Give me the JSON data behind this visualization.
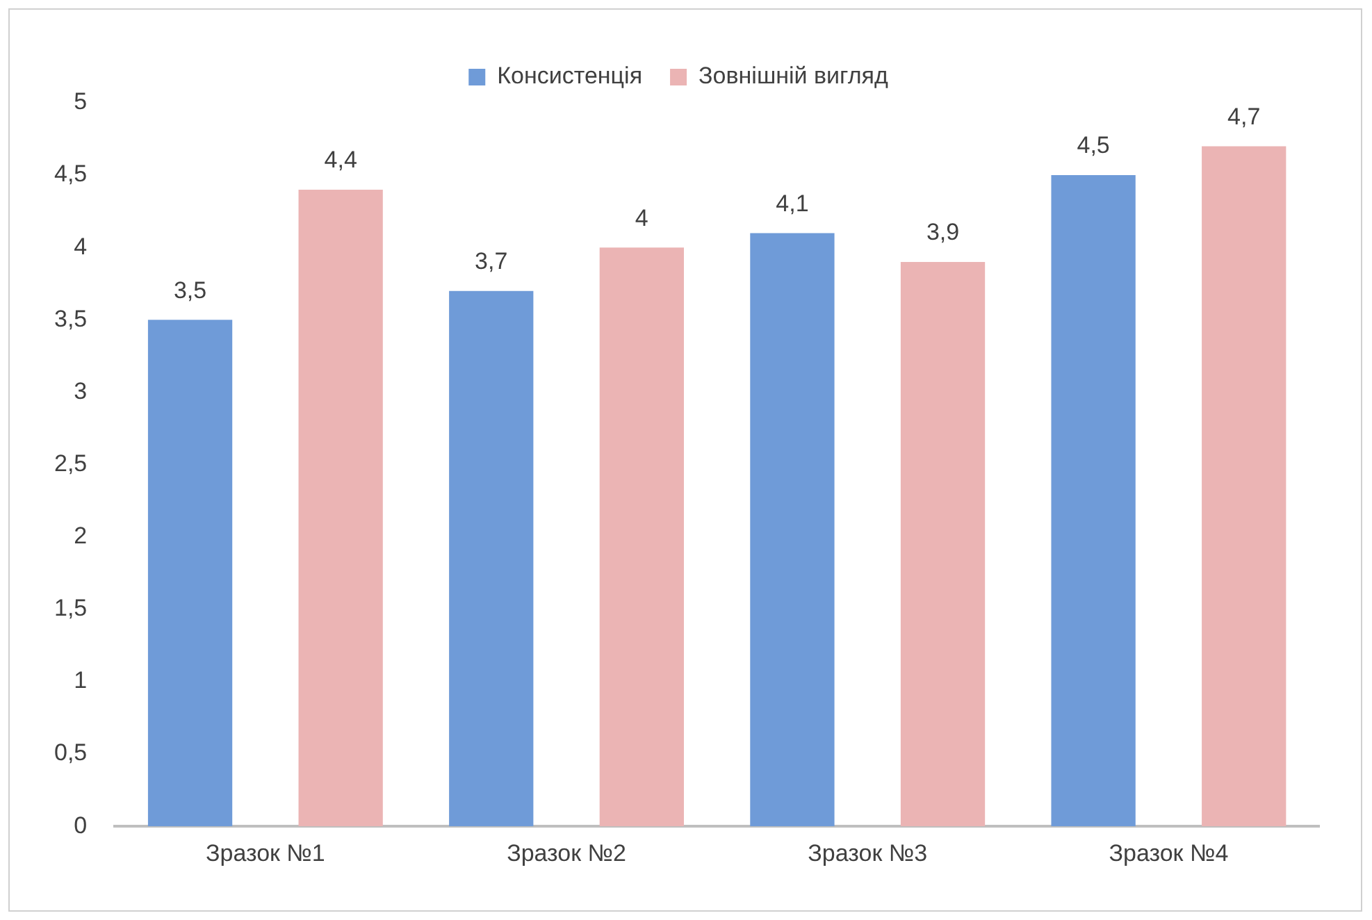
{
  "chart_data": {
    "type": "bar",
    "categories": [
      "Зразок №1",
      "Зразок №2",
      "Зразок №3",
      "Зразок №4"
    ],
    "series": [
      {
        "name": "Консистенція",
        "color": "#6f9bd8",
        "values": [
          3.5,
          3.7,
          4.1,
          4.5
        ],
        "value_labels": [
          "3,5",
          "3,7",
          "4,1",
          "4,5"
        ]
      },
      {
        "name": "Зовнішній вигляд",
        "color": "#ebb4b4",
        "values": [
          4.4,
          4,
          3.9,
          4.7
        ],
        "value_labels": [
          "4,4",
          "4",
          "3,9",
          "4,7"
        ]
      }
    ],
    "ylim": [
      0,
      5
    ],
    "yticks": [
      0,
      {
        "value": 0.5,
        "label": "0,5"
      },
      1,
      {
        "value": 1.5,
        "label": "1,5"
      },
      2,
      {
        "value": 2.5,
        "label": "2,5"
      },
      3,
      {
        "value": 3.5,
        "label": "3,5"
      },
      4,
      {
        "value": 4.5,
        "label": "4,5"
      },
      5
    ],
    "grid": false,
    "legend": "top"
  }
}
